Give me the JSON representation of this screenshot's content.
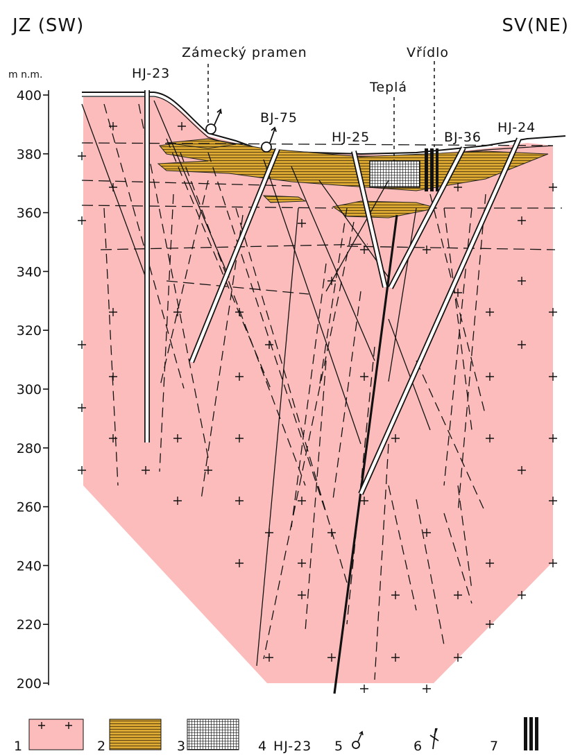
{
  "header": {
    "left": "JZ (SW)",
    "right": "SV(NE)"
  },
  "axis": {
    "label": "m n.m.",
    "ticks": [
      400,
      380,
      360,
      340,
      320,
      300,
      280,
      260,
      240,
      220,
      200
    ]
  },
  "labels": {
    "spring": "Zámecký pramen",
    "vridlo": "Vřídlo",
    "tepla": "Teplá"
  },
  "boreholes": [
    "HJ-23",
    "BJ-75",
    "HJ-25",
    "BJ-36",
    "HJ-24"
  ],
  "legend": [
    {
      "number": "1"
    },
    {
      "number": "2"
    },
    {
      "number": "3"
    },
    {
      "number": "4",
      "label": "HJ-23"
    },
    {
      "number": "5"
    },
    {
      "number": "6"
    },
    {
      "number": "7"
    }
  ]
}
